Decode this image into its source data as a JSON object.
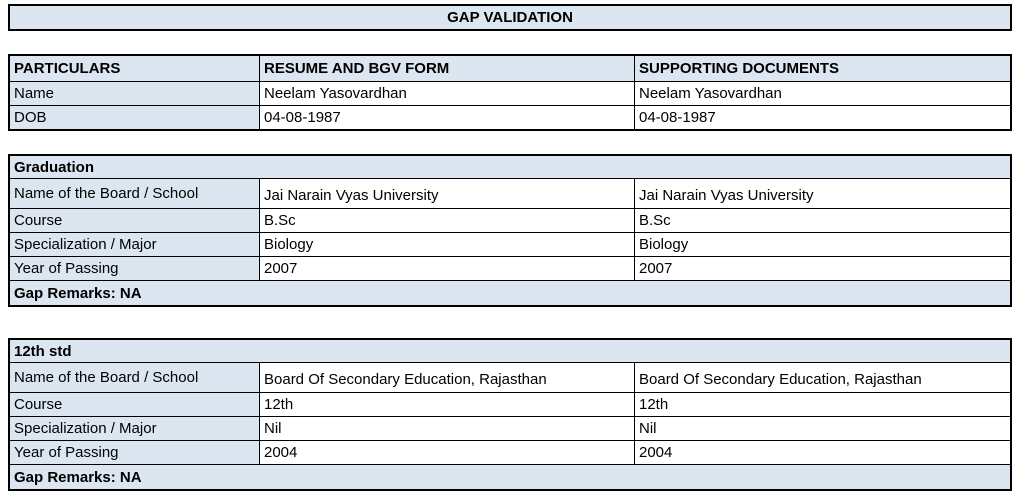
{
  "title": "GAP VALIDATION",
  "colors": {
    "header_fill": "#dce6f1",
    "border": "#000000",
    "background": "#ffffff"
  },
  "personal": {
    "headers": [
      "PARTICULARS",
      "RESUME AND BGV FORM",
      "SUPPORTING DOCUMENTS"
    ],
    "rows": [
      {
        "label": "Name",
        "resume": "Neelam Yasovardhan",
        "supporting": "Neelam Yasovardhan"
      },
      {
        "label": "DOB",
        "resume": "04-08-1987",
        "supporting": "04-08-1987"
      }
    ]
  },
  "sections": [
    {
      "title": "Graduation",
      "rows": [
        {
          "label": "Name of the Board / School",
          "resume": "Jai Narain Vyas University",
          "supporting": "Jai Narain Vyas University"
        },
        {
          "label": "Course",
          "resume": "B.Sc",
          "supporting": "B.Sc"
        },
        {
          "label": "Specialization / Major",
          "resume": "Biology",
          "supporting": "Biology"
        },
        {
          "label": "Year of Passing",
          "resume": "2007",
          "supporting": "2007"
        }
      ],
      "gap_remarks": "Gap Remarks: NA"
    },
    {
      "title": "12th std",
      "rows": [
        {
          "label": "Name of the Board / School",
          "resume": "Board Of Secondary Education, Rajasthan",
          "supporting": "Board Of Secondary Education, Rajasthan"
        },
        {
          "label": "Course",
          "resume": "12th",
          "supporting": "12th"
        },
        {
          "label": "Specialization / Major",
          "resume": "Nil",
          "supporting": "Nil"
        },
        {
          "label": "Year of Passing",
          "resume": "2004",
          "supporting": "2004"
        }
      ],
      "gap_remarks": "Gap Remarks: NA"
    }
  ]
}
